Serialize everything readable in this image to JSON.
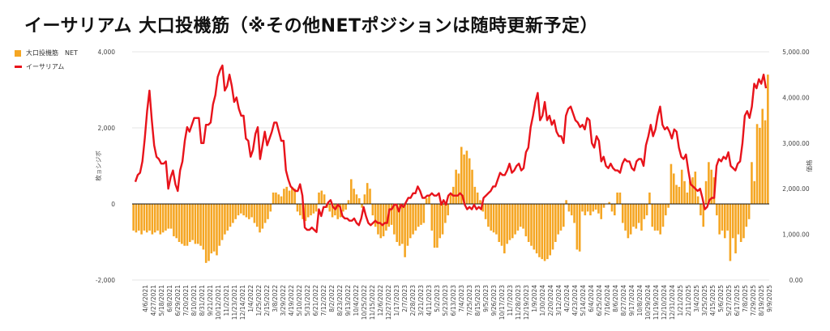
{
  "title": "イーサリアム 大口投機筋（※その他NETポジションは随時更新予定）",
  "chart_data": {
    "type": "bar+line",
    "title": "イーサリアム 大口投機筋（※その他NETポジションは随時更新予定）",
    "legend": [
      {
        "label": "大口投機筋　NET",
        "color": "#F5A623",
        "kind": "bar"
      },
      {
        "label": "イーサリアム",
        "color": "#E8131B",
        "kind": "line"
      }
    ],
    "ylabel_left": "枚ョシジボ",
    "ylabel_right": "価格",
    "ylim_left": [
      -2000,
      4000
    ],
    "ylim_right": [
      0,
      5000
    ],
    "yticks_left": [
      "4,000",
      "2,000",
      "0",
      "-2,000"
    ],
    "yticks_right": [
      "5,000.00",
      "4,000.00",
      "3,000.00",
      "2,000.00",
      "1,000.00",
      "0.00"
    ],
    "x_labels": [
      "4/6/2021",
      "4/27/2021",
      "5/18/2021",
      "6/8/2021",
      "6/29/2021",
      "7/20/2021",
      "8/10/2021",
      "8/31/2021",
      "9/21/2021",
      "10/12/2021",
      "11/2/2021",
      "11/23/2021",
      "12/14/2021",
      "1/4/2022",
      "1/25/2022",
      "2/15/2022",
      "3/8/2022",
      "3/29/2022",
      "4/19/2022",
      "5/10/2022",
      "5/31/2022",
      "6/21/2022",
      "7/12/2022",
      "8/2/2022",
      "8/23/2022",
      "9/13/2022",
      "10/4/2022",
      "10/25/2022",
      "11/15/2022",
      "12/6/2022",
      "12/27/2022",
      "1/17/2023",
      "2/7/2023",
      "2/28/2023",
      "3/21/2023",
      "4/11/2023",
      "5/2/2023",
      "5/23/2023",
      "6/13/2023",
      "7/4/2023",
      "7/25/2023",
      "8/15/2023",
      "9/5/2023",
      "9/26/2023",
      "10/17/2023",
      "11/7/2023",
      "11/28/2023",
      "12/19/2023",
      "1/9/2024",
      "1/30/2024",
      "2/20/2024",
      "3/12/2024",
      "4/2/2024",
      "4/23/2024",
      "5/14/2024",
      "6/4/2024",
      "6/25/2024",
      "7/16/2024",
      "8/6/2024",
      "8/27/2024",
      "9/17/2024",
      "10/8/2024",
      "10/29/2024",
      "11/19/2024",
      "12/10/2024",
      "12/31/2024",
      "1/21/2025",
      "2/11/2025",
      "3/4/2025",
      "3/25/2025",
      "4/15/2025",
      "5/6/2025",
      "5/27/2025",
      "6/17/2025",
      "7/8/2025",
      "7/29/2025",
      "8/19/2025",
      "9/9/2025"
    ],
    "series": [
      {
        "name": "大口投機筋　NET",
        "axis": "left",
        "type": "bar",
        "color": "#F5A623",
        "values": [
          -700,
          -750,
          -700,
          -800,
          -700,
          -750,
          -700,
          -800,
          -750,
          -700,
          -800,
          -750,
          -700,
          -650,
          -650,
          -850,
          -900,
          -1000,
          -1050,
          -1100,
          -1100,
          -1000,
          -950,
          -1050,
          -1050,
          -1100,
          -1200,
          -1550,
          -1500,
          -1300,
          -1250,
          -1350,
          -1100,
          -950,
          -800,
          -700,
          -600,
          -500,
          -400,
          -300,
          -250,
          -300,
          -350,
          -400,
          -350,
          -500,
          -600,
          -750,
          -650,
          -500,
          -400,
          -200,
          300,
          300,
          250,
          200,
          400,
          450,
          350,
          450,
          400,
          -200,
          -300,
          -400,
          -450,
          -350,
          -300,
          -250,
          -200,
          300,
          350,
          250,
          -100,
          -200,
          -350,
          -300,
          -400,
          -350,
          -200,
          -150,
          100,
          650,
          400,
          250,
          150,
          -100,
          250,
          550,
          400,
          -300,
          -600,
          -800,
          -900,
          -850,
          -700,
          -600,
          -550,
          -800,
          -1000,
          -1100,
          -1050,
          -1400,
          -1100,
          -900,
          -800,
          -700,
          -600,
          -550,
          -500,
          150,
          200,
          -700,
          -1150,
          -1150,
          -900,
          -800,
          -500,
          -300,
          250,
          450,
          900,
          800,
          1500,
          1300,
          1400,
          1200,
          900,
          450,
          300,
          100,
          -200,
          -400,
          -600,
          -700,
          -750,
          -800,
          -1000,
          -1100,
          -1300,
          -1050,
          -950,
          -900,
          -800,
          -700,
          -600,
          -650,
          -850,
          -1000,
          -1100,
          -1200,
          -1300,
          -1400,
          -1450,
          -1500,
          -1450,
          -1350,
          -1200,
          -1000,
          -800,
          -700,
          -600,
          100,
          -200,
          -300,
          -500,
          -1200,
          -1250,
          -200,
          -300,
          -200,
          -300,
          -200,
          -150,
          -250,
          -400,
          -100,
          0,
          50,
          -200,
          -300,
          300,
          300,
          -500,
          -700,
          -900,
          -800,
          -600,
          -650,
          -500,
          -700,
          -400,
          -300,
          300,
          -600,
          -700,
          -700,
          -800,
          -600,
          -300,
          -100,
          1050,
          800,
          500,
          450,
          900,
          600,
          300,
          600,
          700,
          850,
          200,
          -300,
          -600,
          600,
          1100,
          900,
          700,
          -300,
          -800,
          -700,
          -900,
          -700,
          -1500,
          -900,
          -1300,
          -800,
          -1000,
          -900,
          -600,
          -400,
          1100,
          600,
          2100,
          2000,
          2500,
          2200,
          3400
        ]
      },
      {
        "name": "イーサリアム",
        "axis": "right",
        "type": "line",
        "color": "#E8131B",
        "values": [
          2150,
          2300,
          2350,
          2600,
          3100,
          3700,
          4150,
          3500,
          2950,
          2700,
          2650,
          2550,
          2550,
          2600,
          2000,
          2250,
          2400,
          2100,
          1950,
          2400,
          2600,
          3050,
          3350,
          3250,
          3400,
          3550,
          3550,
          3550,
          3000,
          3000,
          3400,
          3400,
          3450,
          3850,
          4050,
          4450,
          4600,
          4700,
          4150,
          4250,
          4500,
          4250,
          3900,
          4000,
          3750,
          3600,
          3600,
          3100,
          3050,
          2700,
          2850,
          3200,
          3350,
          2650,
          2950,
          3250,
          2950,
          3100,
          3250,
          3450,
          3450,
          3250,
          3050,
          3050,
          2400,
          2200,
          2050,
          2000,
          1950,
          1950,
          2100,
          1850,
          1150,
          1100,
          1100,
          1150,
          1100,
          1050,
          1550,
          1400,
          1600,
          1600,
          1700,
          1750,
          1600,
          1550,
          1650,
          1600,
          1400,
          1350,
          1350,
          1300,
          1300,
          1350,
          1250,
          1200,
          1350,
          1600,
          1400,
          1250,
          1200,
          1250,
          1300,
          1250,
          1250,
          1200,
          1250,
          1250,
          1550,
          1550,
          1650,
          1650,
          1500,
          1650,
          1600,
          1700,
          1800,
          1800,
          1900,
          1900,
          2050,
          1950,
          1800,
          1800,
          1850,
          1850,
          1900,
          1850,
          1850,
          1900,
          1650,
          1750,
          1650,
          1850,
          1900,
          1850,
          1850,
          1850,
          1900,
          1850,
          1650,
          1550,
          1600,
          1550,
          1650,
          1550,
          1600,
          1550,
          1800,
          1850,
          1900,
          1950,
          2050,
          2050,
          2200,
          2350,
          2300,
          2300,
          2400,
          2550,
          2350,
          2400,
          2500,
          2550,
          2400,
          2450,
          2800,
          2900,
          3350,
          3600,
          3900,
          4100,
          3500,
          3600,
          3900,
          3500,
          3600,
          3400,
          3500,
          3250,
          3150,
          3150,
          3000,
          3600,
          3750,
          3800,
          3650,
          3500,
          3450,
          3350,
          3400,
          3300,
          3550,
          3500,
          3000,
          2900,
          3150,
          3050,
          2600,
          2700,
          2500,
          2450,
          2550,
          2450,
          2400,
          2400,
          2350,
          2550,
          2650,
          2600,
          2600,
          2450,
          2400,
          2600,
          2650,
          2650,
          2500,
          2950,
          3150,
          3400,
          3150,
          3300,
          3600,
          3800,
          3400,
          3300,
          3350,
          3250,
          3100,
          3300,
          3250,
          2900,
          2700,
          2650,
          2750,
          2400,
          2100,
          2050,
          2000,
          1950,
          2000,
          1800,
          1550,
          1600,
          1750,
          1800,
          1800,
          2500,
          2650,
          2600,
          2700,
          2650,
          2800,
          2500,
          2450,
          2400,
          2550,
          2600,
          3000,
          3600,
          3700,
          3550,
          3800,
          4300,
          4200,
          4400,
          4300,
          4500,
          4200
        ]
      }
    ]
  }
}
